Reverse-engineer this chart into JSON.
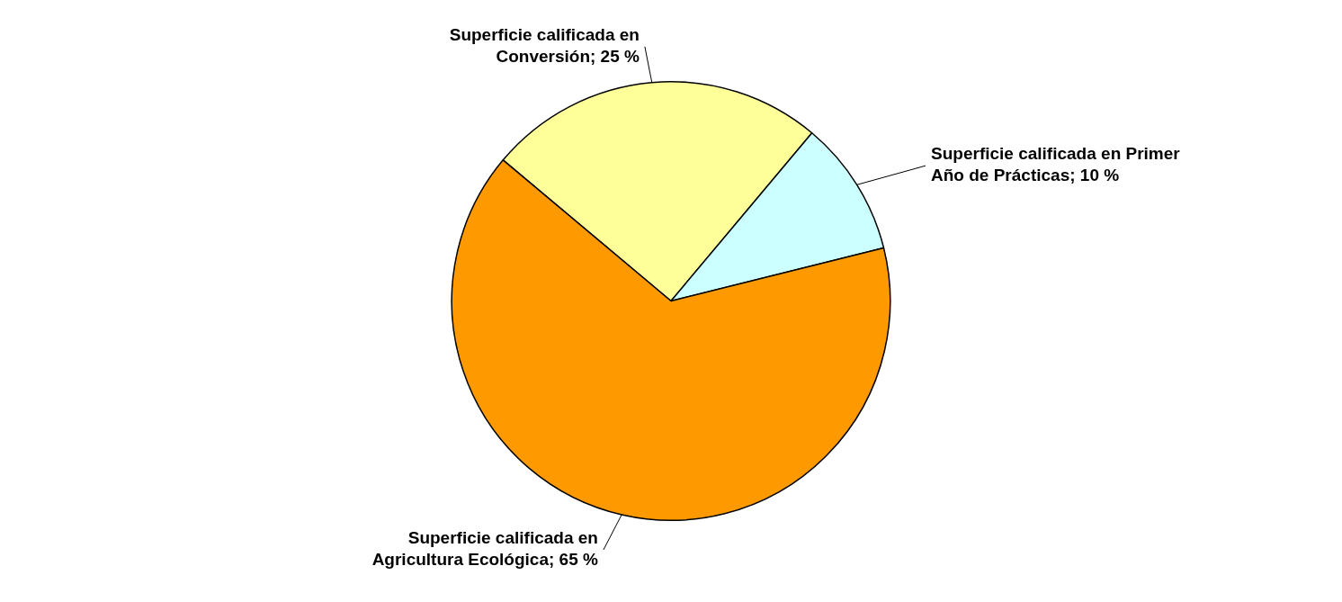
{
  "chart_data": {
    "type": "pie",
    "categories": [
      "Superficie calificada en Conversión",
      "Superficie calificada en Primer Año de Prácticas",
      "Superficie calificada en Agricultura Ecológica"
    ],
    "values": [
      25,
      10,
      65
    ],
    "value_labels": [
      "25 %",
      "10 %",
      "65 %"
    ],
    "colors": [
      "#ffff99",
      "#ccffff",
      "#ff9900"
    ],
    "legend": false
  }
}
